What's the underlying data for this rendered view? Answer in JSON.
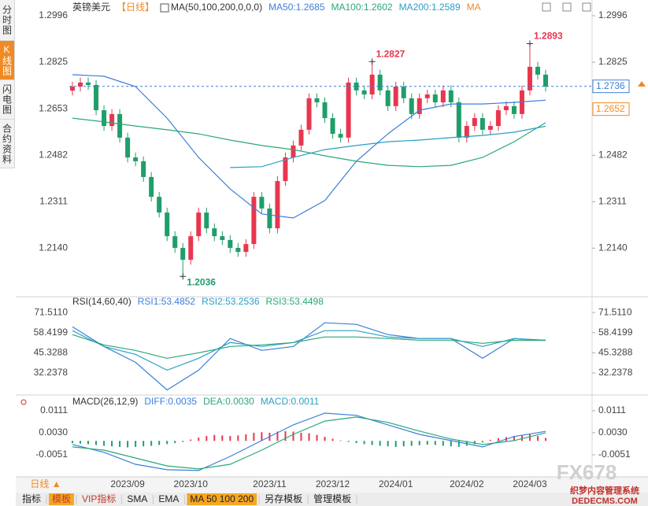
{
  "ui": {
    "sidebar": [
      "分时图",
      "K线图",
      "闪电图",
      "合约资料"
    ],
    "symbol": "英镑美元",
    "period": "【日线】",
    "ma_button": "MA",
    "period_selector": "日线 ▲",
    "toolbar": [
      "指标",
      "模板",
      "VIP指标",
      "SMA",
      "EMA",
      "MA 50 100 200",
      "另存模板",
      "管理模板"
    ],
    "watermark": "FX678",
    "watermark_site": "织梦内容管理系统",
    "watermark_url": "DEDECMS.COM"
  },
  "chart_data": [
    {
      "type": "candlestick",
      "indicator": "MA(50,100,200,0,0,0)",
      "categories": [
        null,
        null,
        null,
        null,
        null,
        null,
        null,
        "2023/09",
        null,
        null,
        null,
        null,
        null,
        null,
        null,
        "2023/10",
        null,
        null,
        null,
        null,
        null,
        null,
        null,
        null,
        null,
        "2023/11",
        null,
        null,
        null,
        null,
        null,
        null,
        null,
        "2023/12",
        null,
        null,
        null,
        null,
        null,
        null,
        null,
        "2024/01",
        null,
        null,
        null,
        null,
        null,
        null,
        null,
        null,
        "2024/02",
        null,
        null,
        null,
        null,
        null,
        null,
        null,
        "2024/03",
        null,
        null
      ],
      "open": [
        1.272,
        1.2735,
        1.275,
        1.2741,
        1.2648,
        1.259,
        1.2634,
        1.2547,
        1.2474,
        1.246,
        1.2402,
        1.2329,
        1.2271,
        1.2184,
        1.2141,
        1.2097,
        1.2184,
        1.2271,
        1.2213,
        1.2184,
        1.217,
        1.2141,
        1.2126,
        1.2155,
        1.2329,
        1.2286,
        1.2213,
        1.2387,
        1.2474,
        1.2518,
        1.2576,
        1.2692,
        1.2677,
        1.2619,
        1.2561,
        1.2547,
        1.275,
        1.2721,
        1.2706,
        1.2779,
        1.2721,
        1.2663,
        1.2735,
        1.2692,
        1.2634,
        1.2692,
        1.2706,
        1.2677,
        1.2721,
        1.2677,
        1.2547,
        1.259,
        1.2619,
        1.2576,
        1.259,
        1.2648,
        1.2663,
        1.2634,
        1.2721,
        1.2808,
        1.2779
      ],
      "high": [
        1.2753,
        1.2768,
        1.2768,
        1.2759,
        1.2666,
        1.2652,
        1.2652,
        1.2565,
        1.2492,
        1.2478,
        1.242,
        1.2347,
        1.2289,
        1.2202,
        1.2159,
        1.2202,
        1.2289,
        1.2289,
        1.2231,
        1.2202,
        1.2188,
        1.2159,
        1.2173,
        1.2347,
        1.2347,
        1.2304,
        1.2405,
        1.2492,
        1.2536,
        1.2594,
        1.271,
        1.271,
        1.2695,
        1.2637,
        1.2579,
        1.2768,
        1.2768,
        1.2739,
        1.2827,
        1.2797,
        1.2739,
        1.2753,
        1.2753,
        1.271,
        1.271,
        1.2724,
        1.2724,
        1.2739,
        1.2739,
        1.2695,
        1.2608,
        1.2637,
        1.2637,
        1.2608,
        1.2666,
        1.2681,
        1.2681,
        1.2739,
        1.2893,
        1.2826,
        1.2797
      ],
      "low": [
        1.2702,
        1.2717,
        1.2723,
        1.263,
        1.2572,
        1.2572,
        1.2529,
        1.2456,
        1.2442,
        1.2384,
        1.2311,
        1.2253,
        1.2166,
        1.2123,
        1.2036,
        1.2079,
        1.2166,
        1.2195,
        1.2166,
        1.2152,
        1.2123,
        1.2108,
        1.2108,
        1.2137,
        1.2268,
        1.2195,
        1.2195,
        1.2369,
        1.2456,
        1.25,
        1.2558,
        1.2659,
        1.2601,
        1.2543,
        1.2529,
        1.2529,
        1.2703,
        1.2688,
        1.2688,
        1.2703,
        1.2645,
        1.2645,
        1.2674,
        1.2616,
        1.2616,
        1.2674,
        1.2659,
        1.2659,
        1.2659,
        1.2529,
        1.2529,
        1.2572,
        1.2558,
        1.2558,
        1.2572,
        1.263,
        1.2616,
        1.2616,
        1.2703,
        1.2761,
        1.2717
      ],
      "close": [
        1.2735,
        1.275,
        1.2741,
        1.2648,
        1.259,
        1.2634,
        1.2547,
        1.2474,
        1.246,
        1.2402,
        1.2329,
        1.2271,
        1.2184,
        1.2141,
        1.2097,
        1.2184,
        1.2271,
        1.2213,
        1.2184,
        1.217,
        1.2141,
        1.2126,
        1.2155,
        1.2329,
        1.2286,
        1.2213,
        1.2387,
        1.2474,
        1.2518,
        1.2576,
        1.2692,
        1.2677,
        1.2619,
        1.2561,
        1.2547,
        1.275,
        1.2721,
        1.2706,
        1.2779,
        1.2721,
        1.2663,
        1.2735,
        1.2692,
        1.2634,
        1.2692,
        1.2706,
        1.2677,
        1.2721,
        1.2677,
        1.2547,
        1.259,
        1.2619,
        1.2576,
        1.259,
        1.2648,
        1.2663,
        1.2634,
        1.2721,
        1.2808,
        1.2779,
        1.2735
      ],
      "up_color": "#e8364f",
      "down_color": "#1f9e6a",
      "series": [
        {
          "name": "MA50:1.2685",
          "color": "#3b7fd9",
          "x": [
            0,
            4,
            8,
            12,
            16,
            20,
            24,
            28,
            32,
            36,
            40,
            44,
            48,
            52,
            56,
            60
          ],
          "values": [
            1.2779,
            1.2773,
            1.2735,
            1.2619,
            1.2474,
            1.2358,
            1.2266,
            1.2251,
            1.2315,
            1.246,
            1.2561,
            1.2648,
            1.2671,
            1.2671,
            1.2677,
            1.2685
          ]
        },
        {
          "name": "MA100:1.2602",
          "color": "#2aa876",
          "x": [
            0,
            4,
            8,
            12,
            16,
            20,
            24,
            28,
            32,
            36,
            40,
            44,
            48,
            52,
            56,
            60
          ],
          "values": [
            1.2619,
            1.2605,
            1.259,
            1.2576,
            1.2561,
            1.2538,
            1.2518,
            1.2503,
            1.248,
            1.246,
            1.2445,
            1.244,
            1.2445,
            1.2474,
            1.2532,
            1.2602
          ]
        },
        {
          "name": "MA200:1.2589",
          "color": "#2a9fc4",
          "x": [
            20,
            24,
            28,
            32,
            36,
            40,
            44,
            48,
            52,
            56,
            60
          ],
          "values": [
            1.2437,
            1.244,
            1.2474,
            1.2503,
            1.2518,
            1.2532,
            1.2538,
            1.2547,
            1.2555,
            1.2567,
            1.2589
          ]
        }
      ],
      "ylim": [
        1.1967,
        1.2996
      ],
      "yticks": [
        1.2996,
        1.2825,
        1.2653,
        1.2482,
        1.2311,
        {
          "value": 1.214,
          "label": "1.2140"
        }
      ],
      "current_price": 1.2736,
      "current_price_color": "#3b7fd9",
      "reference_price": 1.2652,
      "reference_price_color": "#f08a24",
      "annotations": [
        {
          "value": 1.2893,
          "color": "#e8364f"
        },
        {
          "value": 1.2827,
          "color": "#e8364f"
        },
        {
          "value": 1.2036,
          "color": "#1f9e6a"
        }
      ]
    },
    {
      "type": "line",
      "indicator": "RSI(14,60,40)",
      "series": [
        {
          "name": "RSI1:53.4852",
          "color": "#3b7fd9",
          "x": [
            0,
            4,
            8,
            12,
            16,
            20,
            24,
            28,
            32,
            36,
            40,
            44,
            48,
            52,
            56,
            60
          ],
          "values": [
            62.27,
            49.43,
            39.17,
            21.2,
            34.03,
            54.57,
            46.87,
            49.43,
            64.84,
            63.81,
            57.14,
            54.57,
            54.57,
            41.73,
            54.57,
            53.4852
          ]
        },
        {
          "name": "RSI2:53.2536",
          "color": "#2a9fc4",
          "x": [
            0,
            4,
            8,
            12,
            16,
            20,
            24,
            28,
            32,
            36,
            40,
            44,
            48,
            52,
            56,
            60
          ],
          "values": [
            59.7,
            49.43,
            44.3,
            34.03,
            41.73,
            52.0,
            49.43,
            52.0,
            59.7,
            59.7,
            55.6,
            54.57,
            54.57,
            49.43,
            54.57,
            53.2536
          ]
        },
        {
          "name": "RSI3:53.4498",
          "color": "#2aa876",
          "x": [
            0,
            4,
            8,
            12,
            16,
            20,
            24,
            28,
            32,
            36,
            40,
            44,
            48,
            52,
            56,
            60
          ],
          "values": [
            57.14,
            50.46,
            46.87,
            41.73,
            45.33,
            49.43,
            50.46,
            52.0,
            55.6,
            55.6,
            54.57,
            53.54,
            53.54,
            51.49,
            53.54,
            53.4498
          ]
        }
      ],
      "ylim": [
        18.9,
        77.7
      ],
      "yticks": [
        {
          "value": 71.511,
          "label": "71.5110"
        },
        58.4199,
        45.3288,
        32.2378
      ]
    },
    {
      "type": "macd",
      "indicator": "MACD(26,12,9)",
      "series": [
        {
          "name": "DIFF:0.0035",
          "color": "#3b7fd9",
          "x": [
            0,
            4,
            8,
            12,
            16,
            20,
            24,
            28,
            32,
            36,
            40,
            44,
            48,
            52,
            56,
            60
          ],
          "values": [
            -0.0013,
            -0.0042,
            -0.0086,
            -0.0106,
            -0.0109,
            -0.0057,
            0.0001,
            0.0059,
            0.0102,
            0.0094,
            0.0059,
            0.0024,
            0.0001,
            -0.0022,
            0.0016,
            0.0035
          ]
        },
        {
          "name": "DEA:0.0030",
          "color": "#2aa876",
          "x": [
            0,
            4,
            8,
            12,
            16,
            20,
            24,
            28,
            32,
            36,
            40,
            44,
            48,
            52,
            56,
            60
          ],
          "values": [
            -0.0022,
            -0.0034,
            -0.0063,
            -0.0092,
            -0.0103,
            -0.0086,
            -0.0034,
            0.0024,
            0.0073,
            0.0088,
            0.0068,
            0.0036,
            0.0007,
            -0.0013,
            0.0001,
            0.003
          ]
        }
      ],
      "histogram": {
        "name": "MACD:0.0011",
        "color": "#2a9fc4",
        "up_color": "#e8364f",
        "down_color": "#1f9e6a",
        "values": [
          -0.0008,
          -0.001,
          -0.0012,
          -0.0015,
          -0.0018,
          -0.002,
          -0.0022,
          -0.0024,
          -0.0022,
          -0.002,
          -0.0018,
          -0.0015,
          -0.0012,
          -0.0008,
          -0.0004,
          0.0005,
          0.0012,
          0.0018,
          0.0022,
          0.002,
          0.0018,
          0.002,
          0.0024,
          0.003,
          0.0032,
          0.003,
          0.0034,
          0.0036,
          0.0034,
          0.003,
          0.0028,
          0.0022,
          0.0015,
          0.0008,
          0.0002,
          -0.0004,
          -0.0008,
          -0.0012,
          -0.0015,
          -0.0018,
          -0.002,
          -0.0022,
          -0.002,
          -0.0018,
          -0.0016,
          -0.0014,
          -0.0015,
          -0.0018,
          -0.002,
          -0.0022,
          -0.0018,
          -0.0012,
          -0.0006,
          0.0004,
          0.001,
          0.0014,
          0.0018,
          0.002,
          0.0024,
          0.0018,
          0.0011
        ]
      },
      "ylim": [
        -0.0115,
        0.016
      ],
      "yticks": [
        0.0111,
        {
          "value": 0.003,
          "label": "0.0030"
        },
        -0.0051
      ]
    }
  ]
}
